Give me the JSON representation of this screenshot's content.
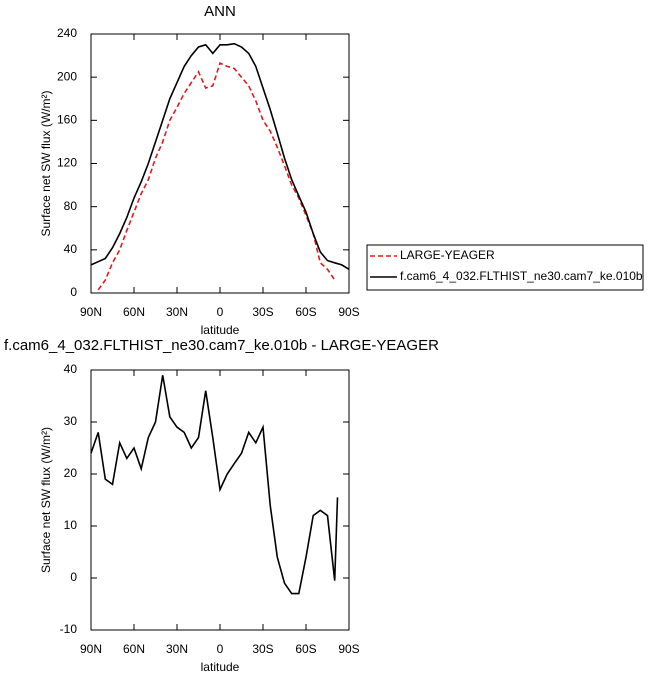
{
  "chart_data": [
    {
      "type": "line",
      "title": "ANN",
      "xlabel": "latitude",
      "ylabel": "Surface net SW flux (W/m²)",
      "x": [
        90,
        85,
        80,
        75,
        70,
        65,
        60,
        55,
        50,
        45,
        40,
        35,
        30,
        25,
        20,
        15,
        10,
        5,
        0,
        -5,
        -10,
        -15,
        -20,
        -25,
        -30,
        -35,
        -40,
        -45,
        -50,
        -55,
        -60,
        -65,
        -70,
        -75,
        -80,
        -85,
        -90
      ],
      "series": [
        {
          "name": "LARGE-YEAGER",
          "color": "#e31a1c",
          "dash": true,
          "values": [
            null,
            3,
            12,
            28,
            40,
            58,
            75,
            92,
            105,
            125,
            140,
            160,
            172,
            185,
            195,
            205,
            190,
            192,
            213,
            210,
            208,
            200,
            192,
            178,
            160,
            150,
            135,
            118,
            100,
            88,
            72,
            55,
            28,
            22,
            12,
            null,
            null
          ]
        },
        {
          "name": "f.cam6_4_032.FLTHIST_ne30.cam7_ke.010b",
          "color": "#000000",
          "dash": false,
          "values": [
            26,
            29,
            32,
            42,
            55,
            70,
            88,
            103,
            120,
            140,
            160,
            180,
            195,
            210,
            220,
            228,
            230,
            222,
            230,
            230,
            231,
            228,
            222,
            210,
            190,
            170,
            148,
            125,
            105,
            90,
            75,
            55,
            38,
            30,
            28,
            26,
            22
          ]
        }
      ],
      "xlim": [
        90,
        -90
      ],
      "xticks": [
        {
          "value": 90,
          "label": "90N"
        },
        {
          "value": 60,
          "label": "60N"
        },
        {
          "value": 30,
          "label": "30N"
        },
        0,
        {
          "value": -30,
          "label": "30S"
        },
        {
          "value": -60,
          "label": "60S"
        },
        {
          "value": -90,
          "label": "90S"
        }
      ],
      "ylim": [
        0,
        240
      ],
      "yticks": [
        0,
        40,
        80,
        120,
        160,
        200,
        240
      ],
      "legend": "outside-right"
    },
    {
      "type": "line",
      "title": "f.cam6_4_032.FLTHIST_ne30.cam7_ke.010b - LARGE-YEAGER",
      "xlabel": "latitude",
      "ylabel": "Surface net SW flux (W/m²)",
      "x": [
        90,
        85,
        80,
        75,
        70,
        65,
        60,
        55,
        50,
        45,
        40,
        35,
        30,
        25,
        20,
        15,
        10,
        5,
        0,
        -5,
        -10,
        -15,
        -20,
        -25,
        -30,
        -35,
        -40,
        -45,
        -50,
        -55,
        -60,
        -65,
        -70,
        -75,
        -80,
        -82
      ],
      "series": [
        {
          "color": "#000000",
          "dash": false,
          "values": [
            24,
            28,
            19,
            18,
            26,
            23,
            25,
            21,
            27,
            30,
            39,
            31,
            29,
            28,
            25,
            27,
            36,
            27,
            17,
            20,
            22,
            24,
            28,
            26,
            29,
            14,
            4,
            -1,
            -3,
            -3,
            4,
            12,
            13,
            12,
            -0.5,
            15.5
          ]
        }
      ],
      "xlim": [
        90,
        -90
      ],
      "xticks": [
        {
          "value": 90,
          "label": "90N"
        },
        {
          "value": 60,
          "label": "60N"
        },
        {
          "value": 30,
          "label": "30N"
        },
        0,
        {
          "value": -30,
          "label": "30S"
        },
        {
          "value": -60,
          "label": "60S"
        },
        {
          "value": -90,
          "label": "90S"
        }
      ],
      "ylim": [
        -10,
        40
      ],
      "yticks": [
        -10,
        0,
        10,
        20,
        30,
        40
      ]
    }
  ]
}
